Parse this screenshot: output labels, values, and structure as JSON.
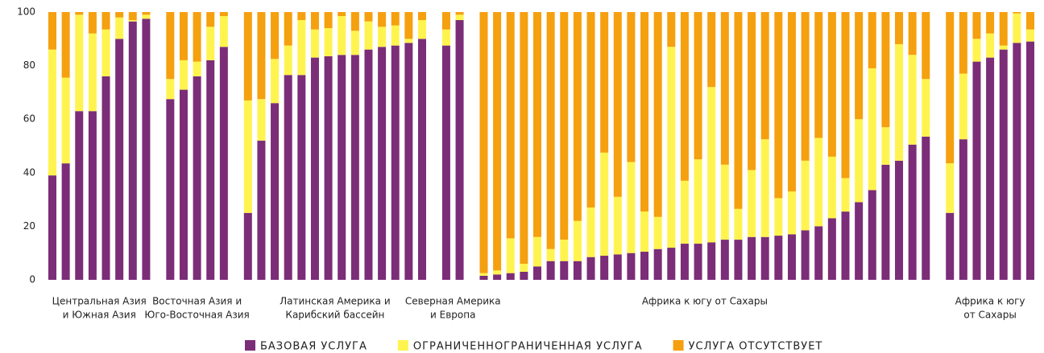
{
  "chart_data": {
    "type": "stacked_bar",
    "ylim": [
      0,
      100
    ],
    "yticks": [
      0,
      20,
      40,
      60,
      80,
      100
    ],
    "grid": false,
    "groups": [
      {
        "label": [
          "Центральная Азия",
          "и Южная Азия"
        ],
        "size": 8
      },
      {
        "label": [
          "Восточная Азия и",
          "Юго-Восточная Азия"
        ],
        "size": 5
      },
      {
        "label": [
          "Латинская Америка и",
          "Карибский бассейн"
        ],
        "size": 14
      },
      {
        "label": [
          "Северная Америка",
          "и Европа"
        ],
        "size": 2
      },
      {
        "label": [
          "Африка к югу от Сахары"
        ],
        "size": 34
      },
      {
        "label": [
          "Африка к югу",
          "от Сахары"
        ],
        "size": 7
      }
    ],
    "legend": "bottom",
    "series": [
      {
        "name": "БАЗОВАЯ УСЛУГА",
        "color": "#7b2d78",
        "values": [
          39,
          43.5,
          63,
          63,
          76,
          90,
          96.5,
          97.5,
          67.5,
          71,
          76,
          82,
          87,
          25,
          52,
          66,
          76.5,
          76.5,
          83,
          83.5,
          84,
          84,
          86,
          87,
          87.5,
          88.5,
          90,
          87.5,
          97,
          1.5,
          2,
          2.5,
          3,
          5,
          7,
          7,
          7,
          8.5,
          9,
          9.5,
          10,
          10.5,
          11.5,
          12,
          13.5,
          13.5,
          14,
          15,
          15,
          16,
          16,
          16.5,
          17,
          18.5,
          20,
          23,
          25.5,
          29,
          33.5,
          43,
          44.5,
          50.5,
          53.5,
          25,
          52.5,
          81.5,
          83,
          86,
          88.5,
          89
        ]
      },
      {
        "name": "ОГРАНИЧЕННОГРАНИЧЕННАЯ УСЛУГА",
        "color": "#fff44f",
        "values": [
          47,
          32,
          36,
          29,
          17.5,
          8,
          0.5,
          1.5,
          7.5,
          11,
          5.5,
          12.5,
          11.5,
          42,
          15.5,
          16.5,
          11,
          20.5,
          10.5,
          10.5,
          14.5,
          9,
          10.5,
          7.5,
          7.5,
          1.5,
          7,
          6,
          2,
          1,
          1.5,
          13,
          3,
          11,
          4.5,
          8,
          15,
          18.5,
          38.5,
          21.5,
          34,
          15,
          12,
          75,
          23.5,
          31.5,
          58,
          28,
          11.5,
          25,
          36.5,
          14,
          16,
          26,
          33,
          23,
          12.5,
          31,
          45.5,
          14,
          43.5,
          33.5,
          21.5,
          18.5,
          24.5,
          8.5,
          9,
          1.5,
          11,
          4.5
        ]
      },
      {
        "name": "УСЛУГА ОТСУТСТВУЕТ",
        "color": "#f5a00f",
        "values": [
          14,
          24.5,
          1,
          8,
          6.5,
          2,
          3,
          1,
          25,
          18,
          18.5,
          5.5,
          1.5,
          33,
          32.5,
          17.5,
          12.5,
          3,
          6.5,
          6,
          1.5,
          7,
          3.5,
          5.5,
          5,
          10,
          3,
          6.5,
          1,
          97.5,
          96.5,
          84.5,
          94,
          84,
          88.5,
          85,
          78,
          73,
          52.5,
          69,
          56,
          74.5,
          76.5,
          13,
          63,
          55,
          28,
          57,
          73.5,
          59,
          47.5,
          69.5,
          67,
          55.5,
          47,
          54,
          62,
          40,
          21,
          43,
          12,
          16,
          25,
          56.5,
          23,
          10,
          8,
          12.5,
          0.5,
          6.5
        ]
      }
    ]
  }
}
